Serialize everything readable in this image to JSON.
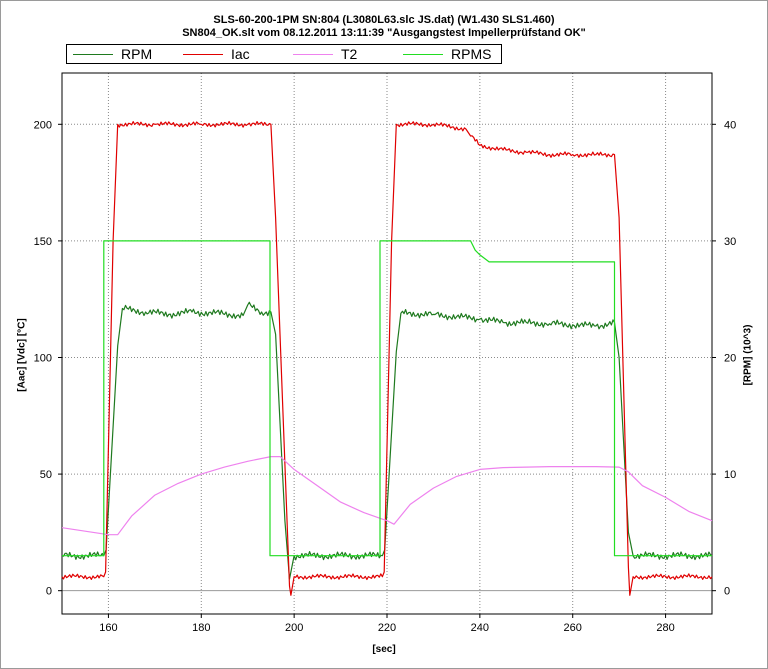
{
  "title_line1": "SLS-60-200-1PM SN:804 (L3080L63.slc JS.dat) (W1.430 SLS1.460)",
  "title_line2": "SN804_OK.slt vom 08.12.2011 13:11:39 \"Ausgangstest Impellerprüfstand OK\"",
  "chart_data": {
    "type": "line",
    "title": "SLS-60-200-1PM SN:804 (L3080L63.slc JS.dat) (W1.430 SLS1.460)",
    "subtitle": "SN804_OK.slt vom 08.12.2011 13:11:39 \"Ausgangstest Impellerprüfstand OK\"",
    "xlabel": "[sec]",
    "ylabel_left": "[Aac]  [Vdc]  [°C]",
    "ylabel_right": "[RPM]  (10^3)",
    "xlim": [
      150,
      290
    ],
    "ylim_left": [
      -10,
      222
    ],
    "ylim_right": [
      -2,
      44.4
    ],
    "x_ticks": [
      160,
      180,
      200,
      220,
      240,
      260,
      280
    ],
    "y_ticks_left": [
      0,
      50,
      100,
      150,
      200
    ],
    "y_ticks_right": [
      0,
      10,
      20,
      30,
      40
    ],
    "grid": true,
    "legend_position": "top",
    "series": [
      {
        "name": "RPM",
        "axis": "right",
        "color": "#1f7a1f",
        "x": [
          150,
          159,
          159.5,
          162,
          163,
          168,
          173,
          178,
          183,
          189,
          190,
          193,
          195,
          196,
          198,
          199,
          200,
          219,
          219.5,
          222,
          223,
          230,
          235,
          240,
          245,
          250,
          255,
          260,
          265,
          269,
          270,
          272,
          273,
          290
        ],
        "y": [
          3,
          3,
          3.5,
          21,
          24.2,
          23.9,
          23.7,
          23.9,
          23.8,
          23.6,
          24.5,
          23.9,
          23.9,
          22,
          6,
          1,
          3,
          3,
          3.5,
          20.5,
          23.8,
          23.7,
          23.5,
          23.3,
          23,
          23,
          22.9,
          22.8,
          22.7,
          23,
          20,
          5,
          3,
          3
        ]
      },
      {
        "name": "Iac",
        "axis": "left",
        "color": "#e00000",
        "x": [
          150,
          159,
          159.4,
          161,
          162,
          170,
          180,
          190,
          195,
          196,
          199,
          199.3,
          200,
          219,
          219.4,
          221,
          222,
          230,
          237,
          238,
          240,
          245,
          250,
          255,
          260,
          265,
          269,
          270,
          272,
          272.3,
          273,
          290
        ],
        "y": [
          6,
          6,
          8,
          150,
          200,
          200,
          200,
          200,
          200,
          160,
          2,
          -2,
          6,
          6,
          8,
          150,
          200,
          200,
          198,
          195,
          191,
          189,
          188,
          187,
          187,
          187,
          187,
          160,
          10,
          -2,
          6,
          6
        ]
      },
      {
        "name": "T2",
        "axis": "left",
        "color": "#ee82ee",
        "x": [
          150,
          155,
          160,
          162,
          165,
          170,
          175,
          180,
          185,
          190,
          195,
          197,
          200,
          205,
          210,
          215,
          220,
          221.5,
          225,
          230,
          235,
          240,
          245,
          250,
          255,
          260,
          265,
          270,
          272,
          275,
          280,
          285,
          290
        ],
        "y": [
          27,
          25.5,
          24,
          24,
          32,
          41,
          46,
          50,
          53,
          55.5,
          57.5,
          57.5,
          52,
          45,
          38,
          33.5,
          30,
          28.5,
          37,
          44,
          49,
          52,
          52.8,
          53,
          53.2,
          53.2,
          53.2,
          53,
          51,
          45,
          40,
          34,
          30
        ]
      },
      {
        "name": "RPMS",
        "axis": "right",
        "color": "#22dd22",
        "x": [
          150,
          159,
          159,
          194.8,
          194.8,
          218.5,
          218.5,
          238,
          239,
          240,
          242,
          269,
          269,
          290
        ],
        "y": [
          3,
          3,
          30,
          30,
          3,
          3,
          30,
          30,
          29.2,
          28.8,
          28.2,
          28.2,
          3,
          3
        ]
      }
    ]
  }
}
